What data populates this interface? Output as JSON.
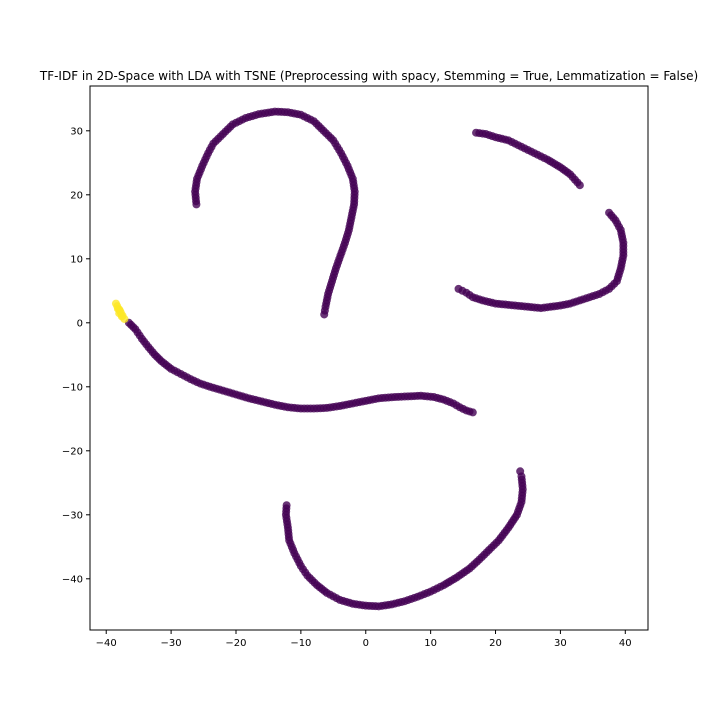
{
  "chart_data": {
    "type": "scatter",
    "title": "TF-IDF in 2D-Space with LDA with TSNE (Preprocessing with spacy, Stemming = True, Lemmatization = False)",
    "xlabel": "",
    "ylabel": "",
    "xlim": [
      -42.5,
      43.5
    ],
    "ylim": [
      -48,
      37
    ],
    "xticks": [
      -40,
      -30,
      -20,
      -10,
      0,
      10,
      20,
      30,
      40
    ],
    "yticks": [
      -40,
      -30,
      -20,
      -10,
      0,
      10,
      20,
      30
    ],
    "grid": false,
    "colors": {
      "cluster_0": "#440154",
      "cluster_1": "#fde725"
    },
    "series": [
      {
        "color": "#440154",
        "points": [
          [
            -26.1,
            18.5
          ],
          [
            -26.3,
            20.5
          ],
          [
            -26.0,
            22.5
          ],
          [
            -25.2,
            24.5
          ],
          [
            -24.3,
            26.5
          ],
          [
            -23.5,
            28.0
          ],
          [
            -22.0,
            29.5
          ],
          [
            -20.5,
            31.0
          ],
          [
            -18.5,
            32.0
          ],
          [
            -16.5,
            32.6
          ],
          [
            -14.0,
            33.0
          ],
          [
            -12.0,
            32.9
          ],
          [
            -10.0,
            32.5
          ],
          [
            -8.0,
            31.5
          ],
          [
            -6.5,
            30.0
          ],
          [
            -5.0,
            28.5
          ],
          [
            -3.8,
            26.5
          ],
          [
            -2.8,
            24.5
          ],
          [
            -2.0,
            22.5
          ],
          [
            -1.7,
            20.5
          ],
          [
            -1.8,
            18.5
          ],
          [
            -2.2,
            16.5
          ],
          [
            -2.6,
            14.5
          ],
          [
            -3.2,
            12.5
          ],
          [
            -3.9,
            10.5
          ],
          [
            -4.6,
            8.5
          ],
          [
            -5.2,
            6.5
          ],
          [
            -5.8,
            4.5
          ],
          [
            -6.2,
            2.5
          ],
          [
            -6.4,
            1.3
          ]
        ]
      },
      {
        "color": "#440154",
        "points": [
          [
            17.0,
            29.7
          ],
          [
            18.5,
            29.5
          ],
          [
            20.0,
            29.0
          ],
          [
            22.0,
            28.5
          ],
          [
            24.0,
            27.5
          ],
          [
            26.0,
            26.5
          ],
          [
            28.0,
            25.5
          ],
          [
            30.0,
            24.3
          ],
          [
            31.5,
            23.2
          ],
          [
            33.0,
            21.5
          ],
          [
            37.5,
            17.2
          ],
          [
            38.5,
            16.0
          ],
          [
            39.3,
            14.5
          ],
          [
            39.7,
            12.5
          ],
          [
            39.7,
            10.5
          ],
          [
            39.3,
            8.5
          ],
          [
            38.7,
            6.5
          ],
          [
            37.5,
            5.3
          ],
          [
            36.0,
            4.5
          ],
          [
            34.5,
            4.0
          ],
          [
            33.0,
            3.5
          ],
          [
            31.5,
            3.0
          ],
          [
            30.0,
            2.7
          ],
          [
            28.5,
            2.5
          ],
          [
            27.0,
            2.3
          ],
          [
            24.0,
            2.6
          ],
          [
            22.0,
            2.8
          ],
          [
            20.0,
            3.0
          ],
          [
            18.0,
            3.5
          ],
          [
            16.5,
            4.0
          ],
          [
            15.5,
            4.7
          ],
          [
            14.3,
            5.3
          ]
        ]
      },
      {
        "color": "#440154",
        "points": [
          [
            -36.5,
            0.0
          ],
          [
            -35.5,
            -1.0
          ],
          [
            -34.5,
            -2.5
          ],
          [
            -33.5,
            -3.8
          ],
          [
            -32.5,
            -5.0
          ],
          [
            -31.5,
            -6.0
          ],
          [
            -30.0,
            -7.2
          ],
          [
            -28.5,
            -8.0
          ],
          [
            -27.0,
            -8.8
          ],
          [
            -25.5,
            -9.5
          ],
          [
            -24.0,
            -10.0
          ],
          [
            -22.0,
            -10.6
          ],
          [
            -20.0,
            -11.2
          ],
          [
            -18.0,
            -11.8
          ],
          [
            -16.0,
            -12.3
          ],
          [
            -14.0,
            -12.8
          ],
          [
            -12.0,
            -13.2
          ],
          [
            -10.0,
            -13.4
          ],
          [
            -8.0,
            -13.4
          ],
          [
            -6.0,
            -13.3
          ],
          [
            -4.0,
            -13.0
          ],
          [
            -2.0,
            -12.6
          ],
          [
            0.0,
            -12.2
          ],
          [
            2.0,
            -11.8
          ],
          [
            4.5,
            -11.6
          ],
          [
            6.5,
            -11.5
          ],
          [
            8.5,
            -11.4
          ],
          [
            10.5,
            -11.6
          ],
          [
            12.0,
            -12.0
          ],
          [
            13.5,
            -12.6
          ],
          [
            14.5,
            -13.2
          ],
          [
            15.5,
            -13.7
          ],
          [
            16.5,
            -14.0
          ]
        ]
      },
      {
        "color": "#440154",
        "points": [
          [
            -12.2,
            -28.5
          ],
          [
            -12.3,
            -30.0
          ],
          [
            -12.0,
            -32.0
          ],
          [
            -11.8,
            -34.0
          ],
          [
            -11.0,
            -36.0
          ],
          [
            -10.0,
            -38.0
          ],
          [
            -9.0,
            -39.5
          ],
          [
            -7.5,
            -41.0
          ],
          [
            -6.0,
            -42.2
          ],
          [
            -4.0,
            -43.3
          ],
          [
            -2.0,
            -43.9
          ],
          [
            0.0,
            -44.2
          ],
          [
            2.0,
            -44.3
          ],
          [
            4.0,
            -44.0
          ],
          [
            6.0,
            -43.5
          ],
          [
            8.0,
            -42.8
          ],
          [
            10.0,
            -42.0
          ],
          [
            12.0,
            -41.0
          ],
          [
            14.0,
            -39.8
          ],
          [
            16.0,
            -38.4
          ],
          [
            17.5,
            -37.0
          ],
          [
            19.0,
            -35.5
          ],
          [
            20.5,
            -34.0
          ],
          [
            22.0,
            -32.0
          ],
          [
            23.3,
            -30.0
          ],
          [
            24.0,
            -28.0
          ],
          [
            24.2,
            -26.0
          ],
          [
            24.0,
            -24.0
          ],
          [
            23.8,
            -23.2
          ]
        ]
      },
      {
        "color": "#fde725",
        "points": [
          [
            -38.5,
            3.0
          ],
          [
            -38.2,
            2.2
          ],
          [
            -38.0,
            1.5
          ],
          [
            -37.6,
            1.0
          ],
          [
            -37.2,
            0.6
          ],
          [
            -38.3,
            2.6
          ],
          [
            -37.9,
            1.9
          ]
        ]
      }
    ]
  }
}
